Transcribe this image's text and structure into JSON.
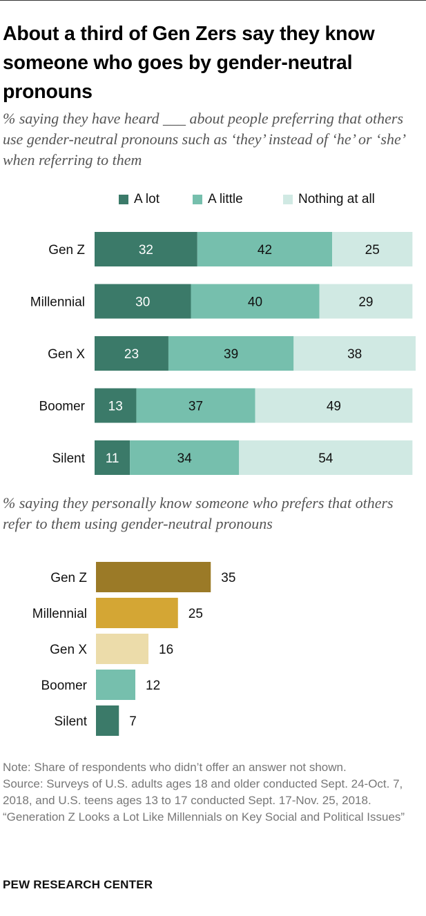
{
  "title": "About a third of Gen Zers say they know someone who goes by gender-neutral pronouns",
  "subtitle1": "% saying they have heard ___ about people preferring that others use gender-neutral pronouns such as ‘they’ instead of ‘he’ or ‘she’ when referring to them",
  "subtitle2": "% saying they personally know someone who prefers that others refer to them using gender-neutral pronouns",
  "note_lines": [
    "Note: Share of respondents who didn’t offer an answer not shown.",
    "Source: Surveys of U.S. adults ages 18 and older conducted Sept. 24-Oct. 7, 2018, and U.S. teens ages 13 to 17 conducted Sept. 17-Nov. 25, 2018.",
    "“Generation Z Looks a Lot Like Millennials on Key Social and Political Issues”"
  ],
  "brand": "PEW RESEARCH CENTER",
  "chart_data": [
    {
      "type": "bar",
      "stacked": true,
      "orientation": "horizontal",
      "categories": [
        "Gen Z",
        "Millennial",
        "Gen X",
        "Boomer",
        "Silent"
      ],
      "series": [
        {
          "name": "A lot",
          "values": [
            32,
            30,
            23,
            13,
            11
          ],
          "color": "#3b7a69"
        },
        {
          "name": "A little",
          "values": [
            42,
            40,
            39,
            37,
            34
          ],
          "color": "#76bfad"
        },
        {
          "name": "Nothing at all",
          "values": [
            25,
            29,
            38,
            49,
            54
          ],
          "color": "#d0e9e3"
        }
      ],
      "legend": "top",
      "grid": false
    },
    {
      "type": "bar",
      "orientation": "horizontal",
      "categories": [
        "Gen Z",
        "Millennial",
        "Gen X",
        "Boomer",
        "Silent"
      ],
      "values": [
        35,
        25,
        16,
        12,
        7
      ],
      "colors": [
        "#9b7a27",
        "#d4a634",
        "#ecdcaa",
        "#76bfad",
        "#3b7a69"
      ],
      "grid": false
    }
  ]
}
